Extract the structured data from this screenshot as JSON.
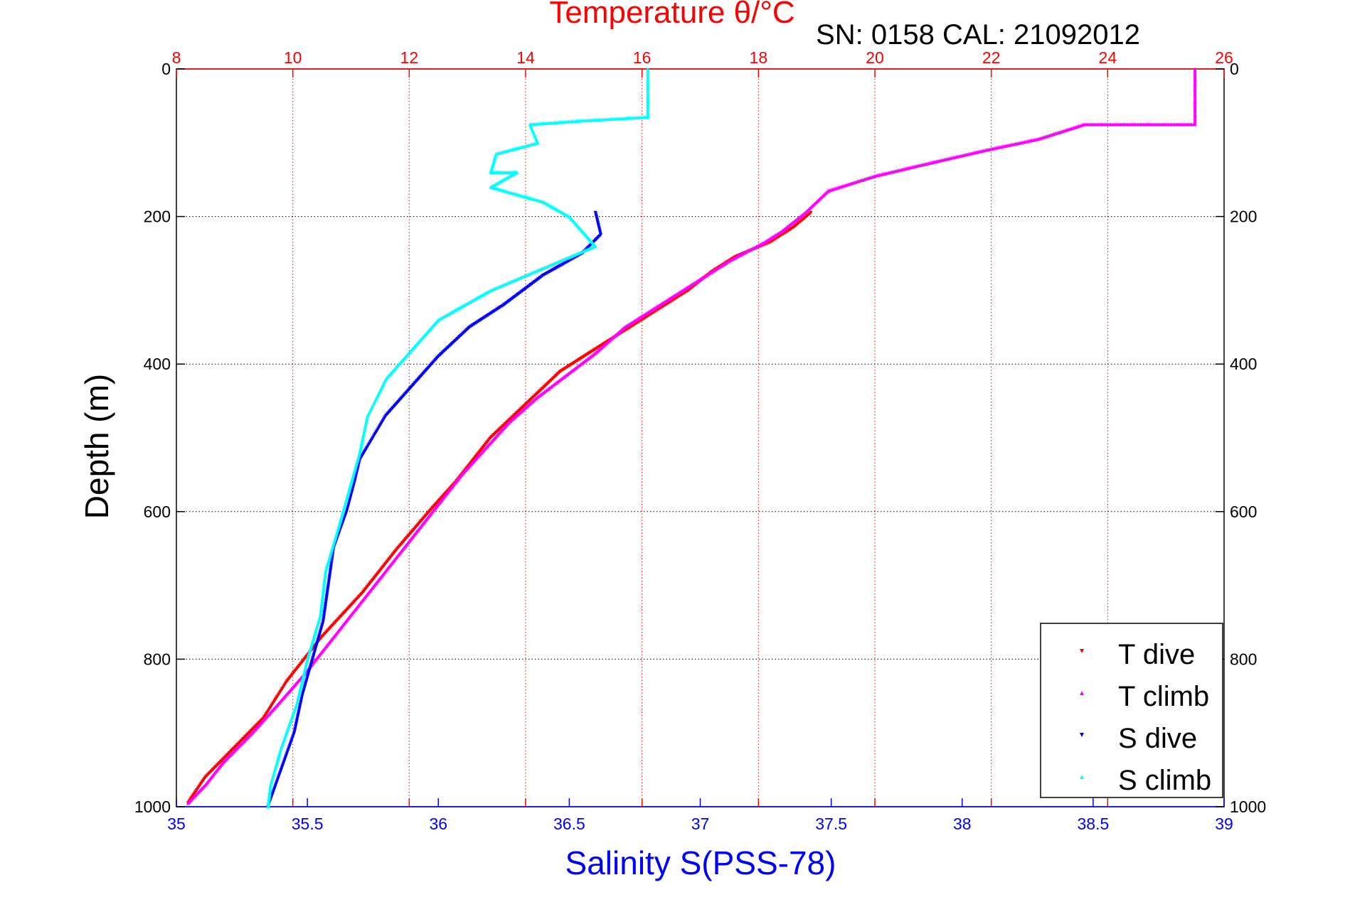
{
  "chart_data": {
    "type": "scatter",
    "title": "Temperature θ/°C",
    "subtitle": "SN: 0158  CAL: 21092012",
    "xlabel": "Salinity S(PSS-78)",
    "ylabel": "Depth (m)",
    "x_bottom": {
      "label": "Salinity S(PSS-78)",
      "lim": [
        35,
        39
      ],
      "ticks": [
        "35",
        "35.5",
        "36",
        "36.5",
        "37",
        "37.5",
        "38",
        "38.5",
        "39"
      ]
    },
    "x_top": {
      "label": "Temperature θ/°C",
      "lim": [
        8,
        26
      ],
      "ticks": [
        "8",
        "10",
        "12",
        "14",
        "16",
        "18",
        "20",
        "22",
        "24",
        "26"
      ]
    },
    "y": {
      "label": "Depth (m)",
      "lim": [
        0,
        1000
      ],
      "reversed": true,
      "ticks": [
        "0",
        "200",
        "400",
        "600",
        "800",
        "1000"
      ]
    },
    "grid": true,
    "legend_position": "bottom-right",
    "series": [
      {
        "name": "T dive",
        "axis": "temperature",
        "color": "#ff0000",
        "marker": "triangle-down",
        "points": [
          [
            18.9,
            195
          ],
          [
            18.6,
            215
          ],
          [
            18.2,
            235
          ],
          [
            17.6,
            255
          ],
          [
            17.2,
            275
          ],
          [
            16.8,
            300
          ],
          [
            16.2,
            330
          ],
          [
            15.6,
            360
          ],
          [
            15.1,
            385
          ],
          [
            14.6,
            410
          ],
          [
            14.2,
            440
          ],
          [
            13.8,
            470
          ],
          [
            13.4,
            500
          ],
          [
            13.1,
            530
          ],
          [
            12.8,
            560
          ],
          [
            12.4,
            595
          ],
          [
            11.8,
            650
          ],
          [
            11.2,
            710
          ],
          [
            10.5,
            770
          ],
          [
            9.9,
            830
          ],
          [
            9.5,
            880
          ],
          [
            9.0,
            920
          ],
          [
            8.5,
            960
          ],
          [
            8.2,
            995
          ]
        ]
      },
      {
        "name": "T climb",
        "axis": "temperature",
        "color": "#ff00ff",
        "marker": "triangle-up",
        "points": [
          [
            25.5,
            0
          ],
          [
            25.5,
            75
          ],
          [
            23.6,
            75
          ],
          [
            22.8,
            95
          ],
          [
            21.9,
            110
          ],
          [
            20.8,
            130
          ],
          [
            20.0,
            145
          ],
          [
            19.2,
            165
          ],
          [
            18.8,
            195
          ],
          [
            18.4,
            220
          ],
          [
            18.1,
            235
          ],
          [
            17.5,
            260
          ],
          [
            17.0,
            285
          ],
          [
            16.4,
            315
          ],
          [
            15.7,
            350
          ],
          [
            15.2,
            385
          ],
          [
            14.7,
            415
          ],
          [
            14.2,
            445
          ],
          [
            13.7,
            480
          ],
          [
            13.3,
            515
          ],
          [
            12.9,
            550
          ],
          [
            12.5,
            590
          ],
          [
            11.9,
            650
          ],
          [
            11.3,
            710
          ],
          [
            10.8,
            760
          ],
          [
            10.2,
            820
          ],
          [
            9.7,
            865
          ],
          [
            9.3,
            900
          ],
          [
            8.8,
            940
          ],
          [
            8.5,
            970
          ],
          [
            8.2,
            995
          ]
        ]
      },
      {
        "name": "S dive",
        "axis": "salinity",
        "color": "#0000ff",
        "marker": "triangle-down",
        "points": [
          [
            36.6,
            195
          ],
          [
            36.62,
            225
          ],
          [
            36.55,
            250
          ],
          [
            36.4,
            280
          ],
          [
            36.25,
            320
          ],
          [
            36.12,
            350
          ],
          [
            36.0,
            390
          ],
          [
            35.9,
            430
          ],
          [
            35.8,
            470
          ],
          [
            35.75,
            500
          ],
          [
            35.7,
            530
          ],
          [
            35.68,
            560
          ],
          [
            35.65,
            600
          ],
          [
            35.6,
            650
          ],
          [
            35.58,
            700
          ],
          [
            35.56,
            750
          ],
          [
            35.52,
            800
          ],
          [
            35.48,
            850
          ],
          [
            35.45,
            900
          ],
          [
            35.4,
            950
          ],
          [
            35.35,
            1000
          ]
        ]
      },
      {
        "name": "S climb",
        "axis": "salinity",
        "color": "#00ffff",
        "marker": "triangle-up",
        "points": [
          [
            36.8,
            0
          ],
          [
            36.8,
            65
          ],
          [
            36.55,
            70
          ],
          [
            36.35,
            75
          ],
          [
            36.38,
            100
          ],
          [
            36.22,
            115
          ],
          [
            36.2,
            140
          ],
          [
            36.3,
            140
          ],
          [
            36.2,
            160
          ],
          [
            36.4,
            180
          ],
          [
            36.5,
            200
          ],
          [
            36.6,
            240
          ],
          [
            36.4,
            270
          ],
          [
            36.2,
            300
          ],
          [
            36.0,
            340
          ],
          [
            35.9,
            380
          ],
          [
            35.8,
            420
          ],
          [
            35.73,
            470
          ],
          [
            35.7,
            520
          ],
          [
            35.66,
            570
          ],
          [
            35.62,
            620
          ],
          [
            35.57,
            680
          ],
          [
            35.55,
            740
          ],
          [
            35.5,
            800
          ],
          [
            35.46,
            860
          ],
          [
            35.4,
            920
          ],
          [
            35.36,
            970
          ],
          [
            35.35,
            1000
          ]
        ]
      }
    ]
  },
  "legend": {
    "items": [
      {
        "label": "T dive",
        "color": "#ff0000",
        "marker": "triangle-down"
      },
      {
        "label": "T climb",
        "color": "#ff00ff",
        "marker": "triangle-up"
      },
      {
        "label": "S dive",
        "color": "#0000ff",
        "marker": "triangle-down"
      },
      {
        "label": "S climb",
        "color": "#00ffff",
        "marker": "triangle-up"
      }
    ]
  },
  "colors": {
    "temperature_axis": "#ff0000",
    "salinity_axis": "#0000ff",
    "depth_axis": "#000000"
  }
}
